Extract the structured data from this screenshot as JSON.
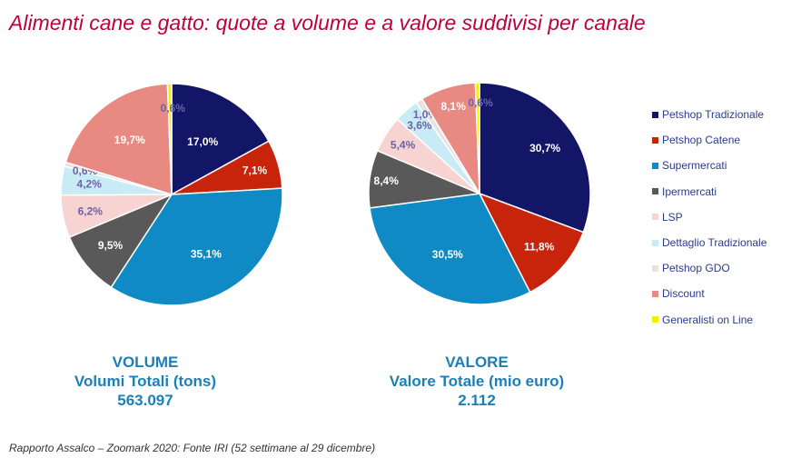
{
  "title": "Alimenti cane e gatto: quote a volume e a valore suddivisi per canale",
  "source_note": "Rapporto Assalco – Zoomark 2020: Fonte IRI (52 settimane al 29 dicembre)",
  "chart_data": [
    {
      "type": "pie",
      "caption": {
        "line1": "VOLUME",
        "line2": "Volumi Totali (tons)",
        "line3": "563.097"
      },
      "categories": [
        "Petshop Tradizionale",
        "Petshop Catene",
        "Supermercati",
        "Ipermercati",
        "LSP",
        "Dettaglio Tradizionale",
        "Petshop GDO",
        "Discount",
        "Generalisti on Line"
      ],
      "values": [
        17.0,
        7.1,
        35.1,
        9.5,
        6.2,
        4.2,
        0.6,
        19.7,
        0.6
      ],
      "labels": [
        "17,0%",
        "7,1%",
        "35,1%",
        "9,5%",
        "6,2%",
        "4,2%",
        "0,6%",
        "19,7%",
        "0,6%"
      ]
    },
    {
      "type": "pie",
      "caption": {
        "line1": "VALORE",
        "line2": "Valore Totale (mio euro)",
        "line3": "2.112"
      },
      "categories": [
        "Petshop Tradizionale",
        "Petshop Catene",
        "Supermercati",
        "Ipermercati",
        "LSP",
        "Dettaglio Tradizionale",
        "Petshop GDO",
        "Discount",
        "Generalisti on Line"
      ],
      "values": [
        30.7,
        11.8,
        30.5,
        8.4,
        5.4,
        3.6,
        1.0,
        8.1,
        0.6
      ],
      "labels": [
        "30,7%",
        "11,8%",
        "30,5%",
        "8,4%",
        "5,4%",
        "3,6%",
        "1,0%",
        "8,1%",
        "0,6%"
      ]
    }
  ],
  "legend": {
    "placement": "right",
    "items": [
      {
        "label": "Petshop Tradizionale",
        "color": "#131566"
      },
      {
        "label": "Petshop Catene",
        "color": "#c8230b"
      },
      {
        "label": "Supermercati",
        "color": "#0f8ac4"
      },
      {
        "label": "Ipermercati",
        "color": "#595959"
      },
      {
        "label": "LSP",
        "color": "#f7d3d1"
      },
      {
        "label": "Dettaglio Tradizionale",
        "color": "#c9ebf6"
      },
      {
        "label": "Petshop GDO",
        "color": "#e6e3e0"
      },
      {
        "label": "Discount",
        "color": "#e88a82"
      },
      {
        "label": "Generalisti on Line",
        "color": "#f4ee00"
      }
    ]
  }
}
